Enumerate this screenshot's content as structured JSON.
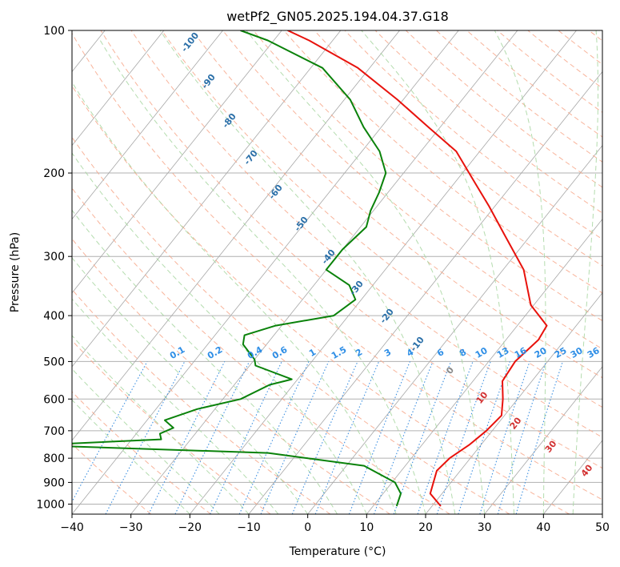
{
  "chart_data": {
    "type": "line",
    "title": "wetPf2_GN05.2025.194.04.37.G18",
    "xlabel": "Temperature (°C)",
    "ylabel": "Pressure (hPa)",
    "xlim": [
      -40,
      50
    ],
    "ylim": [
      1050,
      100
    ],
    "y_scale": "log",
    "x_ticks": [
      -40,
      -30,
      -20,
      -10,
      0,
      10,
      20,
      30,
      40,
      50
    ],
    "x_tick_labels": [
      "−40",
      "−30",
      "−20",
      "−10",
      "0",
      "10",
      "20",
      "30",
      "40",
      "50"
    ],
    "y_ticks": [
      100,
      200,
      300,
      400,
      500,
      600,
      700,
      800,
      900,
      1000
    ],
    "y_tick_labels": [
      "100",
      "200",
      "300",
      "400",
      "500",
      "600",
      "700",
      "800",
      "900",
      "1000"
    ],
    "grid": true,
    "series": [
      {
        "color": "#e8120c",
        "points": [
          [
            21.5,
            1010
          ],
          [
            18.0,
            950
          ],
          [
            16.0,
            850
          ],
          [
            16.5,
            800
          ],
          [
            18.0,
            750
          ],
          [
            19.0,
            700
          ],
          [
            19.5,
            650
          ],
          [
            17.5,
            600
          ],
          [
            15.0,
            550
          ],
          [
            14.5,
            500
          ],
          [
            15.5,
            450
          ],
          [
            15.0,
            420
          ],
          [
            9.5,
            380
          ],
          [
            3.5,
            320
          ],
          [
            -4.5,
            270
          ],
          [
            -11.0,
            235
          ],
          [
            -16.5,
            210
          ],
          [
            -24.0,
            180
          ],
          [
            -32.0,
            160
          ],
          [
            -41.0,
            140
          ],
          [
            -52.0,
            120
          ],
          [
            -64.0,
            105
          ],
          [
            -69.0,
            100
          ]
        ]
      },
      {
        "color": "#0a820a",
        "points": [
          [
            14.0,
            1010
          ],
          [
            13.0,
            950
          ],
          [
            10.5,
            900
          ],
          [
            3.0,
            830
          ],
          [
            -15.0,
            780
          ],
          [
            -50.0,
            755
          ],
          [
            -55.0,
            750
          ],
          [
            -35.0,
            730
          ],
          [
            -36.0,
            710
          ],
          [
            -34.5,
            690
          ],
          [
            -37.0,
            665
          ],
          [
            -33.0,
            630
          ],
          [
            -27.0,
            600
          ],
          [
            -24.0,
            560
          ],
          [
            -21.0,
            545
          ],
          [
            -29.0,
            510
          ],
          [
            -30.0,
            495
          ],
          [
            -34.0,
            460
          ],
          [
            -35.0,
            440
          ],
          [
            -31.0,
            420
          ],
          [
            -22.5,
            400
          ],
          [
            -21.0,
            370
          ],
          [
            -24.0,
            345
          ],
          [
            -30.0,
            320
          ],
          [
            -30.0,
            290
          ],
          [
            -29.0,
            260
          ],
          [
            -30.5,
            240
          ],
          [
            -31.5,
            220
          ],
          [
            -33.0,
            200
          ],
          [
            -37.0,
            180
          ],
          [
            -43.0,
            160
          ],
          [
            -49.0,
            140
          ],
          [
            -58.0,
            120
          ],
          [
            -71.0,
            105
          ],
          [
            -77.0,
            100
          ]
        ]
      }
    ],
    "dry_adiabat_labels": [
      "-100",
      "-90",
      "-80",
      "-70",
      "-60",
      "-50",
      "-40",
      "-30",
      "-20",
      "-10",
      "0",
      "10",
      "20",
      "30",
      "40"
    ],
    "mixing_ratio_labels": [
      "0.1",
      "0.2",
      "0.4",
      "0.6",
      "1",
      "1.5",
      "2",
      "3",
      "4",
      "6",
      "8",
      "10",
      "13",
      "16",
      "20",
      "25",
      "30",
      "36"
    ],
    "colors": {
      "temperature": "#e8120c",
      "dewpoint": "#0a820a",
      "grid": "#b0b0b0",
      "skew_isotherm": "#a6a6a6",
      "dry_adiabat": "#f7a78a",
      "moist_adiabat": "#a7d6a0",
      "mixing_ratio": "#3c8fe0",
      "dry_label": "#2a6fa8",
      "zero_label": "#888888",
      "positive_label": "#d23030",
      "mixing_label": "#2e8ee6"
    }
  }
}
